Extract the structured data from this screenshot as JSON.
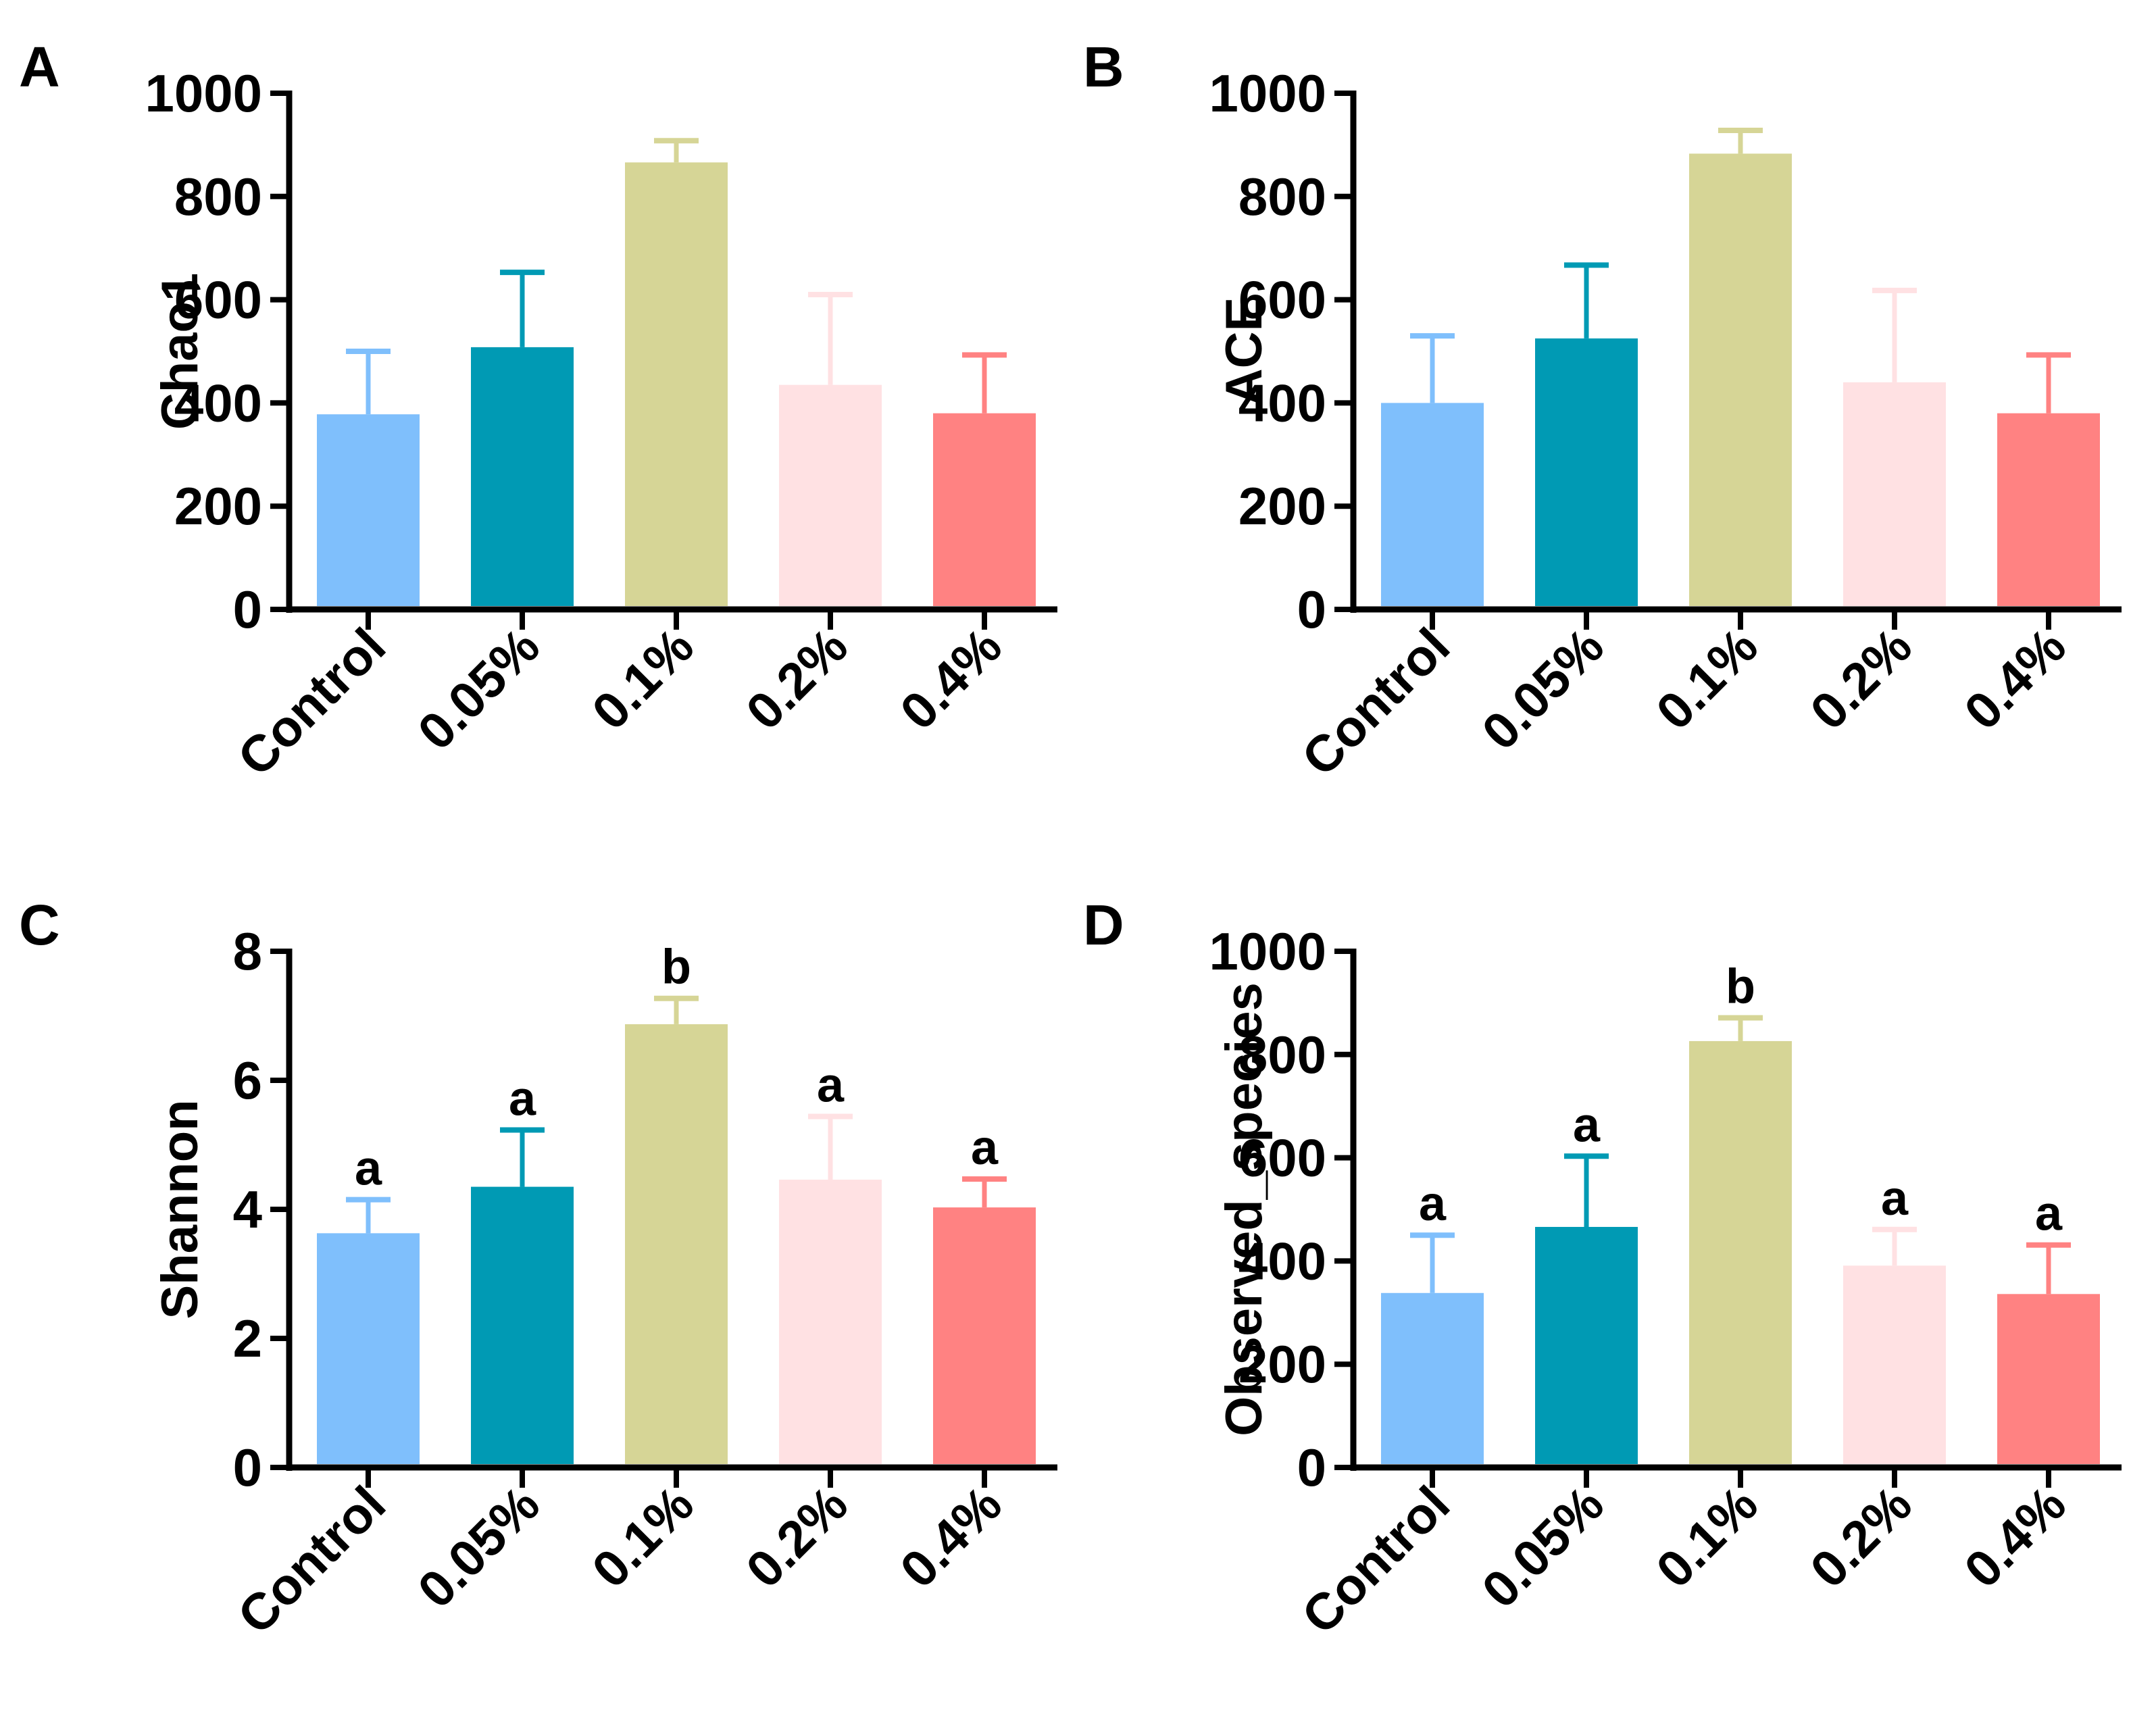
{
  "chart_data": [
    {
      "panel_label": "A",
      "type": "bar",
      "ylabel": "Chao1",
      "categories": [
        "Control",
        "0.05%",
        "0.1%",
        "0.2%",
        "0.4%"
      ],
      "values": [
        378,
        508,
        866,
        435,
        380
      ],
      "errors": [
        122,
        145,
        42,
        175,
        113
      ],
      "sig_letters": [],
      "yticks": [
        "0",
        "200",
        "400",
        "600",
        "800",
        "1000"
      ],
      "ylim": [
        0,
        1000
      ],
      "grid": false,
      "legend": false
    },
    {
      "panel_label": "B",
      "type": "bar",
      "ylabel": "ACE",
      "categories": [
        "Control",
        "0.05%",
        "0.1%",
        "0.2%",
        "0.4%"
      ],
      "values": [
        400,
        525,
        883,
        440,
        380
      ],
      "errors": [
        130,
        142,
        45,
        178,
        113
      ],
      "sig_letters": [],
      "yticks": [
        "0",
        "200",
        "400",
        "600",
        "800",
        "1000"
      ],
      "ylim": [
        0,
        1000
      ],
      "grid": false,
      "legend": false
    },
    {
      "panel_label": "C",
      "type": "bar",
      "ylabel": "Shannon",
      "categories": [
        "Control",
        "0.05%",
        "0.1%",
        "0.2%",
        "0.4%"
      ],
      "values": [
        3.63,
        4.35,
        6.87,
        4.46,
        4.03
      ],
      "errors": [
        0.52,
        0.88,
        0.4,
        0.98,
        0.44
      ],
      "sig_letters": [
        "a",
        "a",
        "b",
        "a",
        "a"
      ],
      "yticks": [
        "0",
        "2",
        "4",
        "6",
        "8"
      ],
      "ylim": [
        0,
        8
      ],
      "grid": false,
      "legend": false
    },
    {
      "panel_label": "D",
      "type": "bar",
      "ylabel": "Observed_species",
      "categories": [
        "Control",
        "0.05%",
        "0.1%",
        "0.2%",
        "0.4%"
      ],
      "values": [
        338,
        466,
        826,
        391,
        336
      ],
      "errors": [
        112,
        137,
        45,
        70,
        95
      ],
      "sig_letters": [
        "a",
        "a",
        "b",
        "a",
        "a"
      ],
      "yticks": [
        "0",
        "200",
        "400",
        "600",
        "800",
        "1000"
      ],
      "ylim": [
        0,
        1000
      ],
      "grid": false,
      "legend": false
    }
  ],
  "bar_colors": [
    "#7fbffc",
    "#009ab4",
    "#d6d596",
    "#ffe1e3",
    "#ff8282"
  ],
  "axis_color": "#000000"
}
